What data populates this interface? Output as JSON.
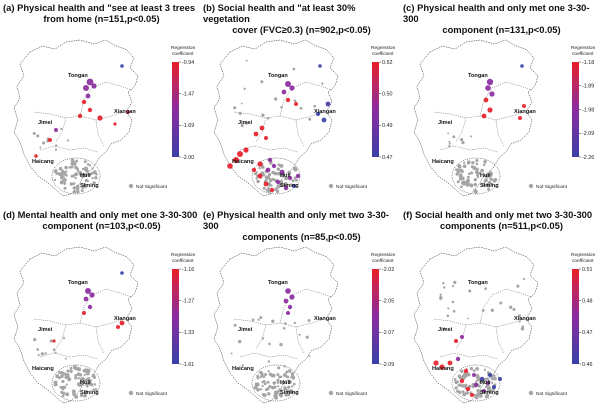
{
  "legend": {
    "title_line1": "Regression",
    "title_line2": "coefficient",
    "not_significant": "Not Significant"
  },
  "districts": [
    "Tongan",
    "Jimei",
    "Xiangan",
    "Haicang",
    "Huli",
    "Siming"
  ],
  "colors": {
    "high": "#e8202a",
    "mid": "#8b2ca0",
    "low": "#3a3fa8",
    "not_significant": "#a5a5a5"
  },
  "panels": [
    {
      "id": "a",
      "title_line1": "(a) Physical health and \"see at least 3 trees",
      "title_line2": "from home (n=151,p<0.05)",
      "ticks": [
        "-0.94",
        "-1.47",
        "-1.69",
        "-2.00"
      ]
    },
    {
      "id": "b",
      "title_line1": "(b) Social health and \"at least 30% vegetation",
      "title_line2": "cover (FVC≥0.3) (n=902,p<0.05)",
      "ticks": [
        "0.52",
        "0.50",
        "0.49",
        "0.47"
      ]
    },
    {
      "id": "c",
      "title_line1": "(c) Physical health and only met one 3-30-300",
      "title_line2": "component (n=131,p<0.05)",
      "ticks": [
        "-1.18",
        "-1.89",
        "-1.98",
        "-2.09",
        "-2.26"
      ]
    },
    {
      "id": "d",
      "title_line1": "(d) Mental health and only met one 3-30-300",
      "title_line2": "component (n=103,p<0.05)",
      "ticks": [
        "-1.16",
        "-1.27",
        "-1.33",
        "-1.61"
      ]
    },
    {
      "id": "e",
      "title_line1": "(e) Physical health and only met two 3-30-300",
      "title_line2": "components (n=85,p<0.05)",
      "ticks": [
        "-2.02",
        "-2.05",
        "-2.07",
        "-2.09"
      ]
    },
    {
      "id": "f",
      "title_line1": "(f) Social health and only met two 3-30-300",
      "title_line2": "components (n=511,p<0.05)",
      "ticks": [
        "0.51",
        "0.48",
        "0.47",
        "0.46"
      ]
    }
  ]
}
